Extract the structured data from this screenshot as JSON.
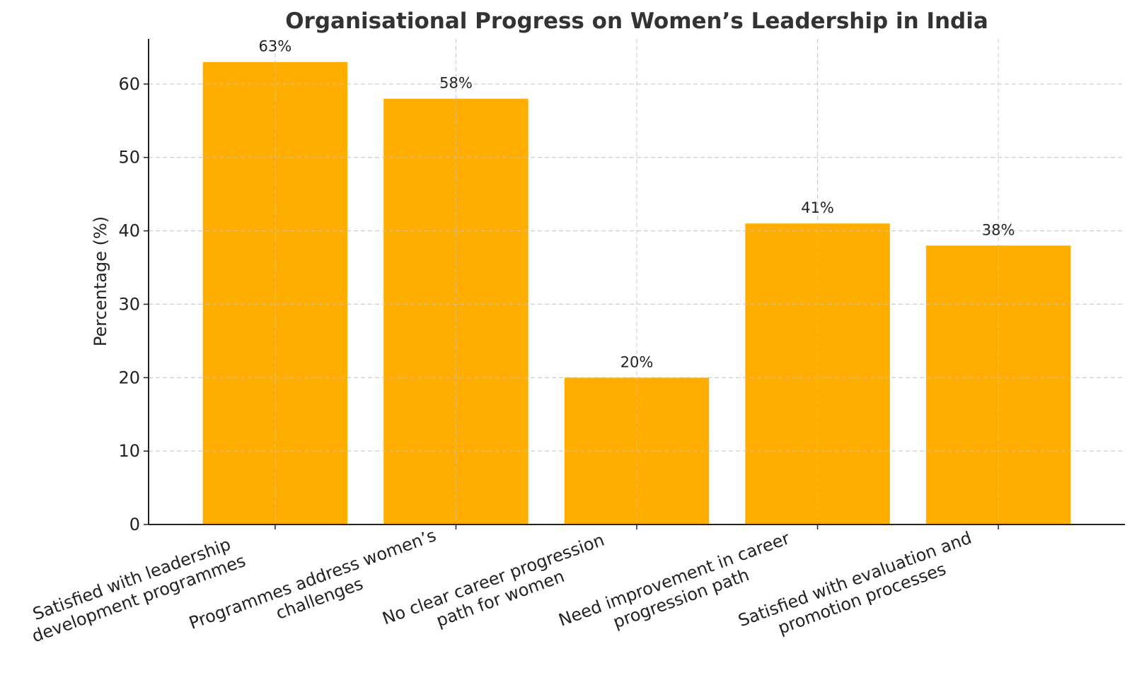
{
  "chart_data": {
    "type": "bar",
    "title": "Organisational Progress on Women’s Leadership in India",
    "xlabel": "",
    "ylabel": "Percentage (%)",
    "categories": [
      [
        "Satisfied with leadership",
        "development programmes"
      ],
      [
        "Programmes address women’s",
        "challenges"
      ],
      [
        "No clear career progression",
        "path for women"
      ],
      [
        "Need improvement in career",
        "progression path"
      ],
      [
        "Satisfied with evaluation and",
        "promotion processes"
      ]
    ],
    "values": [
      63,
      58,
      20,
      41,
      38
    ],
    "data_labels": [
      "63%",
      "58%",
      "20%",
      "41%",
      "38%"
    ],
    "ylim": [
      0,
      66.15
    ],
    "yticks": [
      0,
      10,
      20,
      30,
      40,
      50,
      60
    ],
    "grid": true,
    "bar_color": "#FFAE00"
  }
}
